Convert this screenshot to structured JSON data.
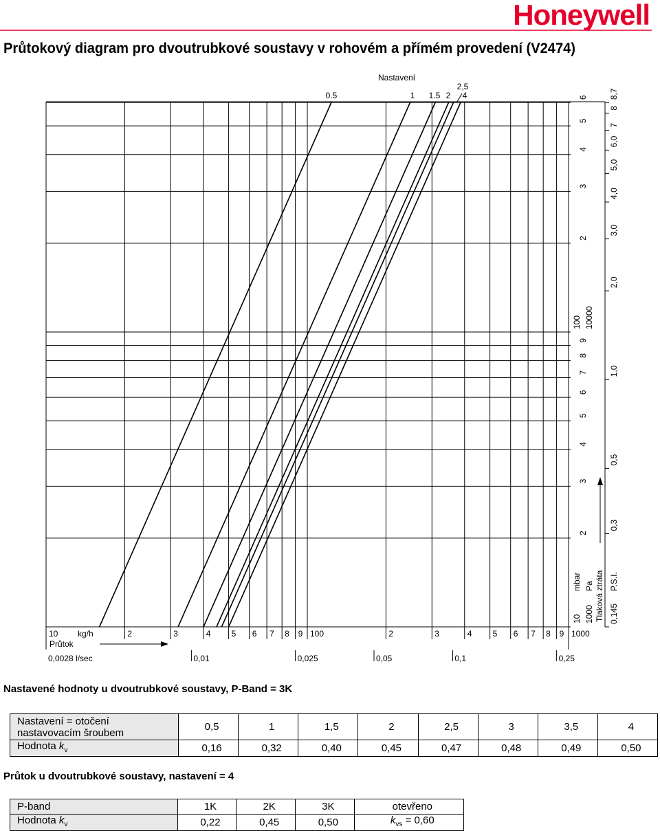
{
  "header": {
    "logo": "Honeywell",
    "title": "Průtokový diagram pro dvoutrubkové soustavy v rohovém a přímém provedení (V2474)"
  },
  "diagram": {
    "settings_title": "Nastavení",
    "setting_labels": [
      "0.5",
      "1",
      "1.5",
      "2",
      "2,5",
      "4"
    ],
    "x_kg_labels": [
      "10",
      "kg/h",
      "2",
      "3",
      "4",
      "5",
      "6",
      "7",
      "8",
      "9",
      "100",
      "2",
      "3",
      "4",
      "5",
      "6",
      "7",
      "8",
      "9",
      "1000"
    ],
    "flow_label": "Průtok",
    "x_ls_labels": [
      "0,0028 l/sec",
      "0,01",
      "0,025",
      "0,05",
      "0,1",
      "0,25"
    ],
    "y_mbar_labels": [
      "10",
      "2",
      "3",
      "4",
      "5",
      "6",
      "7",
      "8",
      "9",
      "100",
      "2",
      "3",
      "4",
      "5",
      "6"
    ],
    "y_pa_labels": [
      "1000",
      "10000"
    ],
    "y_units": [
      "mbar",
      "Pa"
    ],
    "y_title": "Tlaková ztráta",
    "psi_labels": [
      "0,145",
      "0,3",
      "0,5",
      "1,0",
      "2,0",
      "3,0",
      "4,0",
      "5,0",
      "6,0",
      "7",
      "8",
      "8,7"
    ],
    "psi_unit": "P.S.I."
  },
  "table1": {
    "title": "Nastavené hodnoty u dvoutrubkové soustavy, P-Band = 3K",
    "head_label": [
      "Nastavení = otočení",
      "nastavovacím šroubem"
    ],
    "head": [
      "0,5",
      "1",
      "1,5",
      "2",
      "2,5",
      "3",
      "3,5",
      "4"
    ],
    "row_label": {
      "text": "Hodnota ",
      "k": "k",
      "sub": "v"
    },
    "row": [
      "0,16",
      "0,32",
      "0,40",
      "0,45",
      "0,47",
      "0,48",
      "0,49",
      "0,50"
    ]
  },
  "table2": {
    "title": "Průtok u dvoutrubkové soustavy, nastavení = 4",
    "head_label": "P-band",
    "head": [
      "1K",
      "2K",
      "3K",
      "otevřeno"
    ],
    "row_label": {
      "text": "Hodnota ",
      "k": "k",
      "sub": "v"
    },
    "row": [
      "0,22",
      "0,45",
      "0,50"
    ],
    "last": {
      "k": "k",
      "sub": "vs",
      "text": " = 0,60"
    }
  }
}
